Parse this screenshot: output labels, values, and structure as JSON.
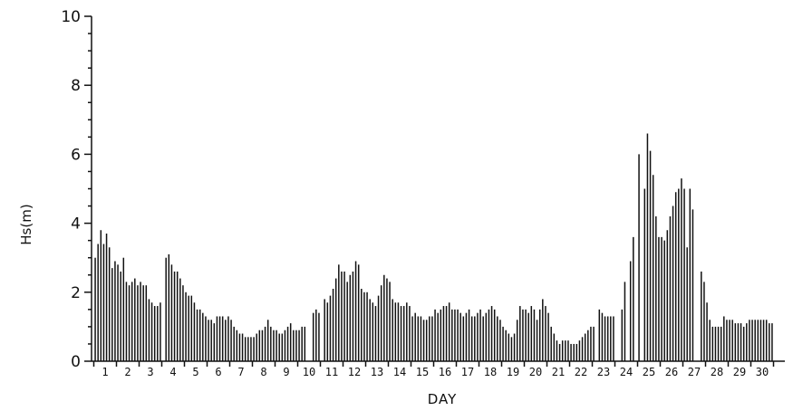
{
  "chart_data": {
    "type": "bar",
    "title": "",
    "xlabel": "DAY",
    "ylabel": "Hs(m)",
    "ylim": [
      0,
      10
    ],
    "xlim": [
      0.4,
      31.0
    ],
    "yticks_major": [
      "0",
      "2",
      "4",
      "6",
      "8",
      "10"
    ],
    "yticks_minor_step": 0.5,
    "xtick_labels": [
      "1",
      "2",
      "3",
      "4",
      "5",
      "6",
      "7",
      "8",
      "9",
      "10",
      "11",
      "12",
      "13",
      "14",
      "15",
      "16",
      "17",
      "18",
      "19",
      "20",
      "21",
      "22",
      "23",
      "24",
      "25",
      "26",
      "27",
      "28",
      "29",
      "30"
    ],
    "grid": false,
    "legend": "none",
    "bar_color": "#111111",
    "observations_per_day": 8,
    "series": [
      {
        "values": [
          [
            3.0,
            3.4,
            3.8,
            3.4,
            3.7,
            3.3,
            2.7,
            2.9
          ],
          [
            2.8,
            2.6,
            3.0,
            2.3,
            2.2,
            2.3,
            2.4,
            2.2
          ],
          [
            2.3,
            2.2,
            2.2,
            1.8,
            1.7,
            1.6,
            1.6,
            1.7
          ],
          [
            null,
            3.0,
            3.1,
            2.8,
            2.6,
            2.6,
            2.4,
            2.2
          ],
          [
            2.0,
            1.9,
            1.9,
            1.7,
            1.5,
            1.5,
            1.4,
            1.3
          ],
          [
            1.2,
            1.2,
            1.1,
            1.3,
            1.3,
            1.3,
            1.2,
            1.3
          ],
          [
            1.2,
            1.0,
            0.9,
            0.8,
            0.8,
            0.7,
            0.7,
            0.7
          ],
          [
            0.7,
            0.8,
            0.9,
            0.9,
            1.0,
            1.2,
            1.0,
            0.9
          ],
          [
            0.9,
            0.8,
            0.8,
            0.9,
            1.0,
            1.1,
            0.9,
            0.9
          ],
          [
            0.9,
            1.0,
            1.0,
            null,
            null,
            1.4,
            1.5,
            1.4
          ],
          [
            null,
            1.8,
            1.7,
            1.9,
            2.1,
            2.4,
            2.8,
            2.6
          ],
          [
            2.6,
            2.3,
            2.5,
            2.6,
            2.9,
            2.8,
            2.1,
            2.0
          ],
          [
            2.0,
            1.8,
            1.7,
            1.6,
            1.9,
            2.2,
            2.5,
            2.4
          ],
          [
            2.3,
            1.8,
            1.7,
            1.7,
            1.6,
            1.6,
            1.7,
            1.6
          ],
          [
            1.3,
            1.4,
            1.3,
            1.3,
            1.2,
            1.2,
            1.3,
            1.3
          ],
          [
            1.5,
            1.4,
            1.5,
            1.6,
            1.6,
            1.7,
            1.5,
            1.5
          ],
          [
            1.5,
            1.4,
            1.3,
            1.4,
            1.5,
            1.3,
            1.3,
            1.4
          ],
          [
            1.5,
            1.3,
            1.4,
            1.5,
            1.6,
            1.5,
            1.3,
            1.2
          ],
          [
            1.0,
            0.9,
            0.8,
            0.7,
            0.8,
            1.2,
            1.6,
            1.5
          ],
          [
            1.5,
            1.4,
            1.6,
            1.5,
            1.2,
            1.5,
            1.8,
            1.6
          ],
          [
            1.4,
            1.0,
            0.8,
            0.6,
            0.5,
            0.6,
            0.6,
            0.6
          ],
          [
            0.5,
            0.5,
            0.5,
            0.6,
            0.7,
            0.8,
            0.9,
            1.0
          ],
          [
            1.0,
            null,
            1.5,
            1.4,
            1.3,
            1.3,
            1.3,
            1.3
          ],
          [
            null,
            null,
            1.5,
            2.3,
            null,
            2.9,
            3.6,
            null
          ],
          [
            6.0,
            null,
            5.0,
            6.6,
            6.1,
            5.4,
            4.2,
            3.6
          ],
          [
            3.6,
            3.5,
            3.8,
            4.2,
            4.5,
            4.9,
            5.0,
            5.3
          ],
          [
            5.0,
            3.3,
            5.0,
            4.4,
            null,
            null,
            2.6,
            2.3
          ],
          [
            1.7,
            1.2,
            1.0,
            1.0,
            1.0,
            1.0,
            1.3,
            1.2
          ],
          [
            1.2,
            1.2,
            1.1,
            1.1,
            1.1,
            1.0,
            1.1,
            1.2
          ],
          [
            1.2,
            1.2,
            1.2,
            1.2,
            1.2,
            1.2,
            1.1,
            1.1
          ]
        ]
      }
    ]
  }
}
